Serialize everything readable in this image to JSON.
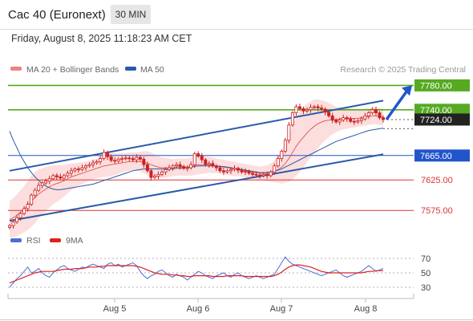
{
  "header": {
    "instrument": "Cac 40 (Euronext)",
    "timeframe": "30 MIN",
    "datetime": "Friday, August 8, 2025 11:18:23 AM CET"
  },
  "legend": {
    "ma20": "MA 20 + Bollinger Bands",
    "ma50": "MA 50",
    "credit": "Research © 2025 Trading Central",
    "rsi": "RSI",
    "rsi_ma": "9MA"
  },
  "colors": {
    "candle": "#cc2222",
    "ma20": "#e06060",
    "bollinger_fill": "#fbd8d8",
    "ma50": "#2a5aa8",
    "channel": "#2a5aa8",
    "resistance": "#55aa22",
    "pivot": "#2255cc",
    "support": "#dd3333",
    "rsi": "#4a6ed6",
    "rsi_ma": "#dd2222"
  },
  "chart_data": [
    {
      "type": "candlestick",
      "x_ticks": [
        "Aug 5",
        "Aug 6",
        "Aug 7",
        "Aug 8"
      ],
      "ylim": [
        7545,
        7795
      ],
      "last_price": 7724.0,
      "price_labels": [
        {
          "value": 7780.0,
          "label": "7780.00",
          "kind": "resistance"
        },
        {
          "value": 7740.0,
          "label": "7740.00",
          "kind": "resistance"
        },
        {
          "value": 7724.0,
          "label": "7724.00",
          "kind": "last"
        },
        {
          "value": 7665.0,
          "label": "7665.00",
          "kind": "pivot"
        },
        {
          "value": 7625.0,
          "label": "7625.00",
          "kind": "support"
        },
        {
          "value": 7575.0,
          "label": "7575.00",
          "kind": "support"
        }
      ],
      "close_series": [
        7550,
        7556,
        7563,
        7570,
        7578,
        7585,
        7600,
        7608,
        7616,
        7620,
        7623,
        7627,
        7632,
        7630,
        7628,
        7632,
        7636,
        7640,
        7643,
        7642,
        7645,
        7648,
        7650,
        7653,
        7655,
        7660,
        7670,
        7663,
        7657,
        7656,
        7659,
        7660,
        7661,
        7660,
        7658,
        7662,
        7659,
        7650,
        7640,
        7629,
        7631,
        7634,
        7638,
        7642,
        7645,
        7648,
        7650,
        7647,
        7644,
        7645,
        7650,
        7668,
        7664,
        7658,
        7650,
        7652,
        7648,
        7645,
        7640,
        7638,
        7640,
        7642,
        7644,
        7641,
        7638,
        7639,
        7636,
        7634,
        7633,
        7632,
        7634,
        7632,
        7638,
        7648,
        7660,
        7672,
        7690,
        7715,
        7735,
        7745,
        7742,
        7738,
        7740,
        7744,
        7745,
        7743,
        7741,
        7736,
        7730,
        7723,
        7720,
        7723,
        7727,
        7725,
        7721,
        7720,
        7722,
        7725,
        7730,
        7735,
        7740,
        7735,
        7727,
        7724
      ],
      "ma20_series": [
        7560,
        7563,
        7567,
        7572,
        7577,
        7583,
        7590,
        7596,
        7602,
        7606,
        7610,
        7614,
        7617,
        7619,
        7621,
        7624,
        7627,
        7630,
        7632,
        7634,
        7636,
        7638,
        7640,
        7642,
        7644,
        7646,
        7648,
        7649,
        7650,
        7651,
        7652,
        7653,
        7654,
        7655,
        7655,
        7655,
        7655,
        7654,
        7652,
        7650,
        7648,
        7646,
        7645,
        7645,
        7645,
        7645,
        7646,
        7646,
        7646,
        7646,
        7647,
        7649,
        7650,
        7650,
        7650,
        7650,
        7649,
        7648,
        7647,
        7646,
        7645,
        7644,
        7643,
        7642,
        7641,
        7640,
        7639,
        7638,
        7637,
        7636,
        7636,
        7636,
        7637,
        7639,
        7642,
        7646,
        7652,
        7660,
        7670,
        7680,
        7688,
        7695,
        7702,
        7708,
        7713,
        7717,
        7720,
        7722,
        7723,
        7724,
        7724,
        7725,
        7726,
        7726,
        7726,
        7726,
        7726,
        7727,
        7728,
        7729,
        7730,
        7730,
        7729,
        7728
      ],
      "band_width": [
        30,
        32,
        34,
        36,
        38,
        40,
        42,
        42,
        40,
        38,
        36,
        34,
        32,
        30,
        28,
        26,
        24,
        22,
        20,
        19,
        18,
        17,
        16,
        16,
        16,
        17,
        18,
        19,
        19,
        18,
        17,
        16,
        15,
        15,
        15,
        15,
        16,
        18,
        20,
        20,
        19,
        18,
        17,
        16,
        15,
        14,
        14,
        14,
        14,
        14,
        15,
        16,
        16,
        15,
        14,
        13,
        13,
        12,
        12,
        12,
        12,
        12,
        12,
        11,
        11,
        11,
        11,
        11,
        11,
        11,
        12,
        13,
        15,
        18,
        22,
        27,
        32,
        38,
        44,
        48,
        50,
        50,
        48,
        46,
        44,
        40,
        36,
        32,
        28,
        24,
        21,
        19,
        18,
        17,
        16,
        15,
        14,
        14,
        14,
        14,
        14,
        14,
        14,
        14
      ],
      "ma50_series": [
        7705,
        7690,
        7678,
        7665,
        7655,
        7645,
        7637,
        7630,
        7624,
        7619,
        7615,
        7612,
        7610,
        7609,
        7609,
        7610,
        7611,
        7612,
        7613,
        7614,
        7615,
        7616,
        7617,
        7618,
        7620,
        7622,
        7624,
        7626,
        7628,
        7630,
        7632,
        7634,
        7636,
        7638,
        7640,
        7641,
        7642,
        7643,
        7643,
        7643,
        7643,
        7643,
        7643,
        7643,
        7643,
        7643,
        7644,
        7644,
        7645,
        7645,
        7646,
        7647,
        7648,
        7648,
        7648,
        7648,
        7648,
        7648,
        7647,
        7647,
        7646,
        7645,
        7644,
        7643,
        7642,
        7641,
        7640,
        7639,
        7638,
        7637,
        7637,
        7637,
        7638,
        7639,
        7641,
        7643,
        7646,
        7649,
        7652,
        7655,
        7658,
        7661,
        7664,
        7667,
        7670,
        7673,
        7676,
        7679,
        7682,
        7685,
        7688,
        7690,
        7692,
        7694,
        7696,
        7698,
        7700,
        7702,
        7704,
        7706,
        7707,
        7708,
        7709,
        7710
      ],
      "channel_upper": [
        [
          0,
          7640
        ],
        [
          103,
          7755
        ]
      ],
      "channel_lower": [
        [
          0,
          7558
        ],
        [
          103,
          7667
        ]
      ],
      "arrow_target": 7780
    },
    {
      "type": "line",
      "title": "RSI",
      "ylim": [
        20,
        80
      ],
      "y_ticks": [
        70,
        50,
        30
      ],
      "rsi_series": [
        30,
        36,
        42,
        46,
        52,
        58,
        50,
        52,
        56,
        50,
        46,
        44,
        50,
        54,
        58,
        60,
        56,
        54,
        52,
        55,
        58,
        57,
        60,
        62,
        60,
        58,
        56,
        62,
        64,
        60,
        62,
        58,
        60,
        62,
        64,
        60,
        52,
        46,
        42,
        46,
        48,
        52,
        54,
        50,
        46,
        44,
        48,
        46,
        44,
        40,
        44,
        48,
        52,
        50,
        46,
        44,
        42,
        46,
        48,
        50,
        46,
        44,
        48,
        50,
        46,
        44,
        42,
        44,
        46,
        44,
        42,
        44,
        46,
        48,
        56,
        64,
        72,
        66,
        62,
        60,
        58,
        56,
        54,
        52,
        50,
        48,
        46,
        48,
        50,
        52,
        54,
        50,
        46,
        44,
        46,
        48,
        50,
        52,
        56,
        60,
        56,
        52,
        54,
        56
      ],
      "rsi_ma_series": [
        36,
        38,
        40,
        42,
        44,
        46,
        48,
        50,
        51,
        52,
        52,
        52,
        52,
        53,
        54,
        55,
        55,
        55,
        56,
        56,
        56,
        57,
        58,
        58,
        58,
        59,
        59,
        60,
        60,
        60,
        60,
        60,
        60,
        60,
        60,
        59,
        58,
        56,
        54,
        52,
        50,
        49,
        48,
        48,
        48,
        47,
        47,
        46,
        46,
        45,
        45,
        46,
        46,
        46,
        46,
        46,
        45,
        45,
        45,
        45,
        46,
        46,
        46,
        46,
        46,
        45,
        45,
        45,
        45,
        45,
        45,
        45,
        45,
        46,
        48,
        51,
        55,
        58,
        60,
        61,
        61,
        60,
        59,
        58,
        56,
        54,
        52,
        51,
        50,
        50,
        50,
        50,
        50,
        50,
        50,
        50,
        50,
        50,
        51,
        52,
        52,
        53,
        53,
        53
      ]
    }
  ]
}
